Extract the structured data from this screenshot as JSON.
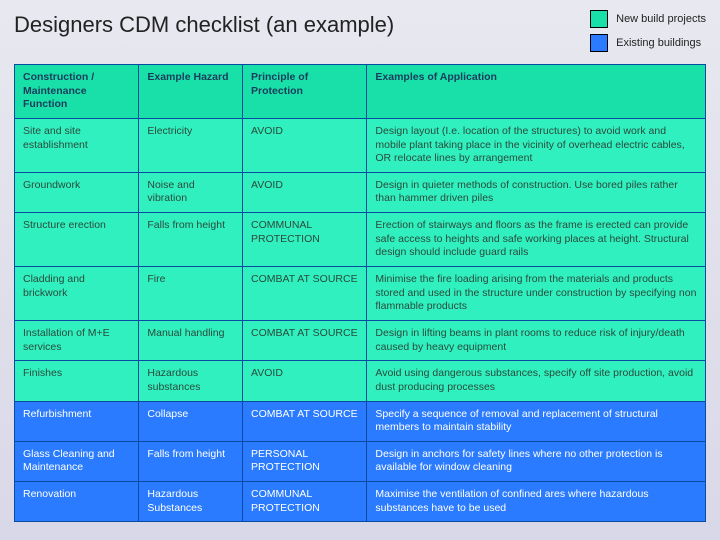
{
  "title": "Designers CDM checklist (an example)",
  "legend": {
    "items": [
      {
        "label": "New build projects",
        "color": "#18e0a8"
      },
      {
        "label": "Existing buildings",
        "color": "#2a7bff"
      }
    ]
  },
  "table": {
    "border_color": "#0a4aa0",
    "header_bg": "#18e0a8",
    "header_fg": "#1a3c5c",
    "group1_bg": "#30f0c0",
    "group1_fg": "#2a4a3a",
    "group2_bg": "#2a7bff",
    "group2_fg": "#ffffff",
    "columns": [
      "Construction / Maintenance Function",
      "Example Hazard",
      "Principle of Protection",
      "Examples of Application"
    ],
    "rows": [
      {
        "group": 1,
        "cells": [
          "Site and site establishment",
          "Electricity",
          "AVOID",
          "Design layout (I.e. location of the structures) to avoid work and mobile plant taking place in the vicinity of overhead electric cables, OR relocate lines by arrangement"
        ]
      },
      {
        "group": 1,
        "cells": [
          "Groundwork",
          "Noise and vibration",
          "AVOID",
          "Design in quieter methods of construction.  Use bored piles rather than hammer driven piles"
        ]
      },
      {
        "group": 1,
        "cells": [
          "Structure erection",
          "Falls from height",
          "COMMUNAL PROTECTION",
          "Erection of stairways and floors as the frame is erected can provide safe access to heights and safe working places at height.  Structural design should include guard rails"
        ]
      },
      {
        "group": 1,
        "cells": [
          "Cladding and brickwork",
          "Fire",
          "COMBAT AT SOURCE",
          "Minimise the fire loading arising from the materials and products stored and used in the structure under construction by specifying non flammable products"
        ]
      },
      {
        "group": 1,
        "cells": [
          "Installation of M+E services",
          "Manual handling",
          "COMBAT AT SOURCE",
          "Design in lifting beams in plant rooms to reduce risk of injury/death caused by heavy equipment"
        ]
      },
      {
        "group": 1,
        "cells": [
          "Finishes",
          "Hazardous substances",
          "AVOID",
          "Avoid using dangerous substances, specify off site production, avoid dust producing processes"
        ]
      },
      {
        "group": 2,
        "cells": [
          "Refurbishment",
          "Collapse",
          "COMBAT AT SOURCE",
          "Specify a sequence of removal and replacement of structural members to maintain stability"
        ]
      },
      {
        "group": 2,
        "cells": [
          "Glass Cleaning and Maintenance",
          "Falls from height",
          "PERSONAL PROTECTION",
          "Design in anchors for safety lines where no other protection is available for window cleaning"
        ]
      },
      {
        "group": 2,
        "cells": [
          "Renovation",
          "Hazardous Substances",
          "COMMUNAL PROTECTION",
          "Maximise the ventilation of confined ares where hazardous substances have to be used"
        ]
      }
    ]
  }
}
